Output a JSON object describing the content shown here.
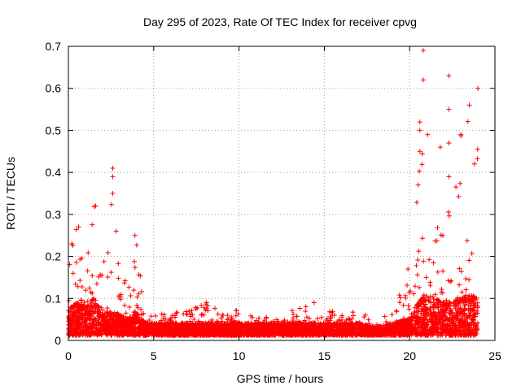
{
  "chart_data": {
    "type": "scatter",
    "title": "Day 295 of 2023, Rate Of TEC Index for receiver cpvg",
    "xlabel": "GPS time / hours",
    "ylabel": "ROTI / TECUs",
    "xlim": [
      0,
      25
    ],
    "ylim": [
      0,
      0.7
    ],
    "xticks": [
      "0",
      "5",
      "10",
      "15",
      "20",
      "25"
    ],
    "yticks": [
      "0",
      "0.1",
      "0.2",
      "0.3",
      "0.4",
      "0.5",
      "0.6",
      "0.7"
    ],
    "grid": true,
    "marker": "+",
    "color": "#ff0000",
    "series": [
      {
        "name": "ROTI",
        "profile": [
          {
            "x": 0.0,
            "base": 0.07,
            "max": 0.23
          },
          {
            "x": 0.5,
            "base": 0.08,
            "max": 0.27
          },
          {
            "x": 1.0,
            "base": 0.07,
            "max": 0.2
          },
          {
            "x": 1.5,
            "base": 0.09,
            "max": 0.32
          },
          {
            "x": 2.0,
            "base": 0.05,
            "max": 0.18
          },
          {
            "x": 2.5,
            "base": 0.06,
            "max": 0.41
          },
          {
            "x": 3.0,
            "base": 0.05,
            "max": 0.2
          },
          {
            "x": 3.5,
            "base": 0.04,
            "max": 0.12
          },
          {
            "x": 4.0,
            "base": 0.06,
            "max": 0.25
          },
          {
            "x": 4.5,
            "base": 0.03,
            "max": 0.08
          },
          {
            "x": 5.0,
            "base": 0.03,
            "max": 0.06
          },
          {
            "x": 6.0,
            "base": 0.03,
            "max": 0.07
          },
          {
            "x": 7.0,
            "base": 0.03,
            "max": 0.07
          },
          {
            "x": 8.0,
            "base": 0.03,
            "max": 0.09
          },
          {
            "x": 9.0,
            "base": 0.03,
            "max": 0.07
          },
          {
            "x": 10.0,
            "base": 0.03,
            "max": 0.08
          },
          {
            "x": 11.0,
            "base": 0.03,
            "max": 0.06
          },
          {
            "x": 12.0,
            "base": 0.03,
            "max": 0.06
          },
          {
            "x": 13.0,
            "base": 0.03,
            "max": 0.07
          },
          {
            "x": 14.0,
            "base": 0.03,
            "max": 0.09
          },
          {
            "x": 15.0,
            "base": 0.03,
            "max": 0.07
          },
          {
            "x": 16.0,
            "base": 0.03,
            "max": 0.07
          },
          {
            "x": 17.0,
            "base": 0.03,
            "max": 0.08
          },
          {
            "x": 18.0,
            "base": 0.02,
            "max": 0.05
          },
          {
            "x": 19.0,
            "base": 0.03,
            "max": 0.07
          },
          {
            "x": 20.0,
            "base": 0.04,
            "max": 0.17
          },
          {
            "x": 20.5,
            "base": 0.08,
            "max": 0.37
          },
          {
            "x": 21.0,
            "base": 0.1,
            "max": 0.69
          },
          {
            "x": 21.5,
            "base": 0.09,
            "max": 0.3
          },
          {
            "x": 22.0,
            "base": 0.08,
            "max": 0.46
          },
          {
            "x": 22.5,
            "base": 0.08,
            "max": 0.63
          },
          {
            "x": 23.0,
            "base": 0.09,
            "max": 0.49
          },
          {
            "x": 23.5,
            "base": 0.1,
            "max": 0.56
          },
          {
            "x": 24.0,
            "base": 0.09,
            "max": 0.61
          }
        ],
        "notable_points": [
          {
            "x": 20.8,
            "y": 0.69
          },
          {
            "x": 20.8,
            "y": 0.62
          },
          {
            "x": 22.3,
            "y": 0.63
          },
          {
            "x": 24.0,
            "y": 0.6
          },
          {
            "x": 22.3,
            "y": 0.55
          },
          {
            "x": 23.5,
            "y": 0.56
          },
          {
            "x": 20.6,
            "y": 0.52
          },
          {
            "x": 20.6,
            "y": 0.5
          },
          {
            "x": 23.0,
            "y": 0.49
          },
          {
            "x": 22.3,
            "y": 0.47
          },
          {
            "x": 21.8,
            "y": 0.46
          },
          {
            "x": 20.6,
            "y": 0.45
          },
          {
            "x": 23.8,
            "y": 0.42
          },
          {
            "x": 2.6,
            "y": 0.41
          },
          {
            "x": 2.6,
            "y": 0.39
          },
          {
            "x": 22.3,
            "y": 0.39
          },
          {
            "x": 20.5,
            "y": 0.37
          },
          {
            "x": 2.6,
            "y": 0.35
          },
          {
            "x": 1.6,
            "y": 0.32
          },
          {
            "x": 0.6,
            "y": 0.27
          },
          {
            "x": 2.8,
            "y": 0.26
          },
          {
            "x": 3.9,
            "y": 0.25
          },
          {
            "x": 0.2,
            "y": 0.23
          },
          {
            "x": 19.9,
            "y": 0.17
          },
          {
            "x": 14.4,
            "y": 0.09
          },
          {
            "x": 8.1,
            "y": 0.09
          }
        ]
      }
    ]
  }
}
